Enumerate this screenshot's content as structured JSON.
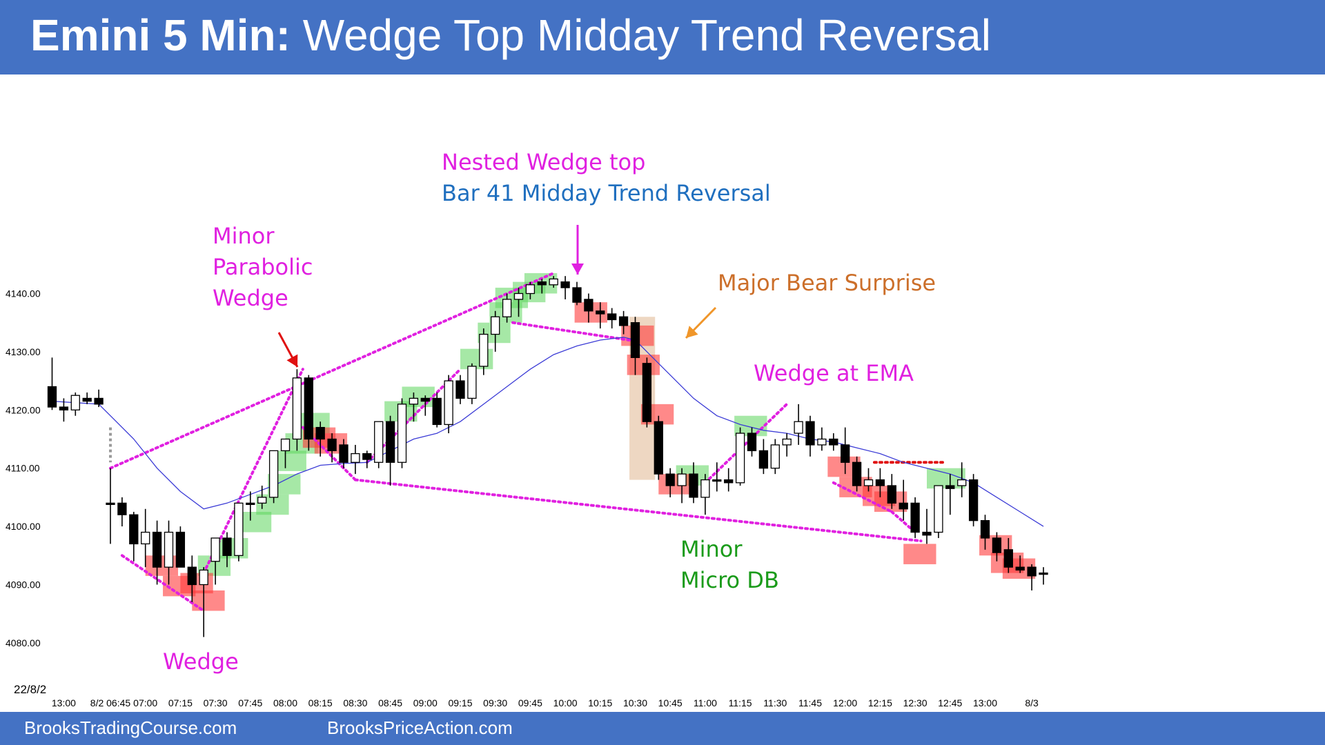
{
  "header": {
    "title_bold": "Emini 5 Min:",
    "title_rest": "Wedge Top Midday Trend Reversal"
  },
  "footer": {
    "link1": "BrooksTradingCourse.com",
    "link2": "BrooksPriceAction.com"
  },
  "date_label": "22/8/2",
  "colors": {
    "header_bg": "#4472c4",
    "bull_highlight": "#5cd65c",
    "bear_highlight": "#ff3b3b",
    "trendline_magenta": "#e020e0",
    "ema_line": "#3b3bd6",
    "arrow_red": "#e01010",
    "arrow_orange": "#f0962a",
    "surprise_box": "#e8c9ad"
  },
  "annotations": {
    "nested_wedge": "Nested Wedge top",
    "bar41": "Bar 41 Midday Trend Reversal",
    "minor_parabolic": [
      "Minor",
      "Parabolic",
      "Wedge"
    ],
    "major_bear": "Major Bear Surprise",
    "wedge_ema": "Wedge at EMA",
    "minor_micro": [
      "Minor",
      "Micro DB"
    ],
    "wedge": "Wedge"
  },
  "chart_data": {
    "type": "candlestick",
    "ylim": [
      4076,
      4148
    ],
    "y_ticks": [
      "4140.00",
      "4130.00",
      "4120.00",
      "4110.00",
      "4100.00",
      "4090.00",
      "4080.00"
    ],
    "y_tick_values": [
      4140,
      4130,
      4120,
      4110,
      4100,
      4090,
      4080
    ],
    "x_ticks": [
      {
        "label": "13:00",
        "bar": -4
      },
      {
        "label": "8/2 06:45",
        "bar": 0
      },
      {
        "label": "07:00",
        "bar": 3
      },
      {
        "label": "07:15",
        "bar": 6
      },
      {
        "label": "07:30",
        "bar": 9
      },
      {
        "label": "07:45",
        "bar": 12
      },
      {
        "label": "08:00",
        "bar": 15
      },
      {
        "label": "08:15",
        "bar": 18
      },
      {
        "label": "08:30",
        "bar": 21
      },
      {
        "label": "08:45",
        "bar": 24
      },
      {
        "label": "09:00",
        "bar": 27
      },
      {
        "label": "09:15",
        "bar": 30
      },
      {
        "label": "09:30",
        "bar": 33
      },
      {
        "label": "09:45",
        "bar": 36
      },
      {
        "label": "10:00",
        "bar": 39
      },
      {
        "label": "10:15",
        "bar": 42
      },
      {
        "label": "10:30",
        "bar": 45
      },
      {
        "label": "10:45",
        "bar": 48
      },
      {
        "label": "11:00",
        "bar": 51
      },
      {
        "label": "11:15",
        "bar": 54
      },
      {
        "label": "11:30",
        "bar": 57
      },
      {
        "label": "11:45",
        "bar": 60
      },
      {
        "label": "12:00",
        "bar": 63
      },
      {
        "label": "12:15",
        "bar": 66
      },
      {
        "label": "12:30",
        "bar": 69
      },
      {
        "label": "12:45",
        "bar": 72
      },
      {
        "label": "13:00",
        "bar": 75
      },
      {
        "label": "8/3",
        "bar": 79
      }
    ],
    "prior_day_bars": [
      {
        "bar": -5,
        "o": 4124,
        "h": 4129,
        "l": 4120,
        "c": 4120.5
      },
      {
        "bar": -4,
        "o": 4120.5,
        "h": 4122,
        "l": 4118,
        "c": 4120
      },
      {
        "bar": -3,
        "o": 4120,
        "h": 4123,
        "l": 4119,
        "c": 4122.5
      },
      {
        "bar": -2,
        "o": 4122,
        "h": 4123,
        "l": 4121,
        "c": 4121.5
      },
      {
        "bar": -1,
        "o": 4122,
        "h": 4123.5,
        "l": 4120.5,
        "c": 4121
      }
    ],
    "bars": [
      {
        "bar": 0,
        "o": 4104,
        "h": 4110,
        "l": 4097,
        "c": 4104
      },
      {
        "bar": 1,
        "o": 4104,
        "h": 4105,
        "l": 4100,
        "c": 4102
      },
      {
        "bar": 2,
        "o": 4102,
        "h": 4102.5,
        "l": 4094,
        "c": 4097
      },
      {
        "bar": 3,
        "o": 4097,
        "h": 4103,
        "l": 4093,
        "c": 4099
      },
      {
        "bar": 4,
        "o": 4099,
        "h": 4101,
        "l": 4090,
        "c": 4093
      },
      {
        "bar": 5,
        "o": 4093,
        "h": 4101,
        "l": 4090,
        "c": 4099
      },
      {
        "bar": 6,
        "o": 4099,
        "h": 4100,
        "l": 4093,
        "c": 4093
      },
      {
        "bar": 7,
        "o": 4093,
        "h": 4095,
        "l": 4087,
        "c": 4090
      },
      {
        "bar": 8,
        "o": 4090,
        "h": 4093,
        "l": 4081,
        "c": 4092.5
      },
      {
        "bar": 9,
        "o": 4094,
        "h": 4098,
        "l": 4090,
        "c": 4098
      },
      {
        "bar": 10,
        "o": 4098,
        "h": 4099,
        "l": 4093,
        "c": 4095
      },
      {
        "bar": 11,
        "o": 4095,
        "h": 4104,
        "l": 4094,
        "c": 4104
      },
      {
        "bar": 12,
        "o": 4104,
        "h": 4106,
        "l": 4101,
        "c": 4104
      },
      {
        "bar": 13,
        "o": 4104,
        "h": 4107,
        "l": 4103,
        "c": 4105
      },
      {
        "bar": 14,
        "o": 4105,
        "h": 4113,
        "l": 4104,
        "c": 4113
      },
      {
        "bar": 15,
        "o": 4113,
        "h": 4115,
        "l": 4110,
        "c": 4115
      },
      {
        "bar": 16,
        "o": 4115,
        "h": 4127,
        "l": 4113,
        "c": 4125.5
      },
      {
        "bar": 17,
        "o": 4125.5,
        "h": 4126,
        "l": 4113,
        "c": 4115
      },
      {
        "bar": 18,
        "o": 4117,
        "h": 4118,
        "l": 4112,
        "c": 4115
      },
      {
        "bar": 19,
        "o": 4115,
        "h": 4116,
        "l": 4111,
        "c": 4113
      },
      {
        "bar": 20,
        "o": 4114,
        "h": 4115,
        "l": 4110,
        "c": 4111
      },
      {
        "bar": 21,
        "o": 4111,
        "h": 4114,
        "l": 4109,
        "c": 4112.5
      },
      {
        "bar": 22,
        "o": 4112.5,
        "h": 4113,
        "l": 4110,
        "c": 4111.5
      },
      {
        "bar": 23,
        "o": 4111,
        "h": 4118,
        "l": 4110,
        "c": 4118
      },
      {
        "bar": 24,
        "o": 4118,
        "h": 4119,
        "l": 4107,
        "c": 4111
      },
      {
        "bar": 25,
        "o": 4111,
        "h": 4122,
        "l": 4110,
        "c": 4121
      },
      {
        "bar": 26,
        "o": 4121,
        "h": 4123,
        "l": 4118,
        "c": 4122
      },
      {
        "bar": 27,
        "o": 4122,
        "h": 4122.5,
        "l": 4119,
        "c": 4121.5
      },
      {
        "bar": 28,
        "o": 4122,
        "h": 4123,
        "l": 4117,
        "c": 4117.5
      },
      {
        "bar": 29,
        "o": 4117.5,
        "h": 4126,
        "l": 4116,
        "c": 4125
      },
      {
        "bar": 30,
        "o": 4125,
        "h": 4126,
        "l": 4121,
        "c": 4122
      },
      {
        "bar": 31,
        "o": 4122,
        "h": 4128,
        "l": 4121,
        "c": 4127.5
      },
      {
        "bar": 32,
        "o": 4127.5,
        "h": 4134,
        "l": 4126,
        "c": 4133
      },
      {
        "bar": 33,
        "o": 4133,
        "h": 4137,
        "l": 4130,
        "c": 4136
      },
      {
        "bar": 34,
        "o": 4136,
        "h": 4140,
        "l": 4135,
        "c": 4139
      },
      {
        "bar": 35,
        "o": 4139,
        "h": 4141,
        "l": 4136,
        "c": 4140
      },
      {
        "bar": 36,
        "o": 4140,
        "h": 4142,
        "l": 4139,
        "c": 4141.5
      },
      {
        "bar": 37,
        "o": 4141.5,
        "h": 4142.5,
        "l": 4140,
        "c": 4142
      },
      {
        "bar": 38,
        "o": 4141.5,
        "h": 4143,
        "l": 4141,
        "c": 4142.5
      },
      {
        "bar": 39,
        "o": 4142,
        "h": 4143,
        "l": 4139,
        "c": 4141
      },
      {
        "bar": 40,
        "o": 4141,
        "h": 4142,
        "l": 4138,
        "c": 4138.5
      },
      {
        "bar": 41,
        "o": 4139,
        "h": 4140,
        "l": 4135,
        "c": 4137
      },
      {
        "bar": 42,
        "o": 4137,
        "h": 4138.5,
        "l": 4134,
        "c": 4136.5
      },
      {
        "bar": 43,
        "o": 4136.5,
        "h": 4137.5,
        "l": 4134,
        "c": 4135.5
      },
      {
        "bar": 44,
        "o": 4136,
        "h": 4137,
        "l": 4133,
        "c": 4134.5
      },
      {
        "bar": 45,
        "o": 4135,
        "h": 4136,
        "l": 4126,
        "c": 4129
      },
      {
        "bar": 46,
        "o": 4128,
        "h": 4129,
        "l": 4117,
        "c": 4118
      },
      {
        "bar": 47,
        "o": 4118,
        "h": 4119,
        "l": 4108,
        "c": 4109
      },
      {
        "bar": 48,
        "o": 4109,
        "h": 4110,
        "l": 4105,
        "c": 4107
      },
      {
        "bar": 49,
        "o": 4107,
        "h": 4110,
        "l": 4104,
        "c": 4109
      },
      {
        "bar": 50,
        "o": 4109,
        "h": 4111,
        "l": 4104,
        "c": 4105
      },
      {
        "bar": 51,
        "o": 4105,
        "h": 4109,
        "l": 4102,
        "c": 4108
      },
      {
        "bar": 52,
        "o": 4108,
        "h": 4111,
        "l": 4106,
        "c": 4108
      },
      {
        "bar": 53,
        "o": 4108,
        "h": 4110,
        "l": 4106,
        "c": 4107.5
      },
      {
        "bar": 54,
        "o": 4107.5,
        "h": 4117,
        "l": 4107,
        "c": 4116
      },
      {
        "bar": 55,
        "o": 4116,
        "h": 4117,
        "l": 4112,
        "c": 4113
      },
      {
        "bar": 56,
        "o": 4113,
        "h": 4115,
        "l": 4109,
        "c": 4110
      },
      {
        "bar": 57,
        "o": 4110,
        "h": 4115,
        "l": 4109,
        "c": 4114
      },
      {
        "bar": 58,
        "o": 4114,
        "h": 4116,
        "l": 4112,
        "c": 4115
      },
      {
        "bar": 59,
        "o": 4116,
        "h": 4121,
        "l": 4114,
        "c": 4118
      },
      {
        "bar": 60,
        "o": 4118,
        "h": 4119,
        "l": 4112,
        "c": 4114
      },
      {
        "bar": 61,
        "o": 4114,
        "h": 4117,
        "l": 4113,
        "c": 4115
      },
      {
        "bar": 62,
        "o": 4115,
        "h": 4116,
        "l": 4113,
        "c": 4114
      },
      {
        "bar": 63,
        "o": 4114,
        "h": 4117,
        "l": 4109,
        "c": 4111
      },
      {
        "bar": 64,
        "o": 4111,
        "h": 4112,
        "l": 4106,
        "c": 4107
      },
      {
        "bar": 65,
        "o": 4107,
        "h": 4110,
        "l": 4106,
        "c": 4108
      },
      {
        "bar": 66,
        "o": 4108,
        "h": 4110,
        "l": 4105,
        "c": 4107
      },
      {
        "bar": 67,
        "o": 4107,
        "h": 4109,
        "l": 4103,
        "c": 4104
      },
      {
        "bar": 68,
        "o": 4104,
        "h": 4108,
        "l": 4101,
        "c": 4103
      },
      {
        "bar": 69,
        "o": 4104,
        "h": 4105,
        "l": 4098,
        "c": 4099
      },
      {
        "bar": 70,
        "o": 4099,
        "h": 4103,
        "l": 4097,
        "c": 4098.5
      },
      {
        "bar": 71,
        "o": 4099,
        "h": 4107,
        "l": 4098,
        "c": 4107
      },
      {
        "bar": 72,
        "o": 4107,
        "h": 4109,
        "l": 4102,
        "c": 4106.5
      },
      {
        "bar": 73,
        "o": 4107,
        "h": 4111,
        "l": 4105,
        "c": 4108
      },
      {
        "bar": 74,
        "o": 4108,
        "h": 4109,
        "l": 4100,
        "c": 4101
      },
      {
        "bar": 75,
        "o": 4101,
        "h": 4102,
        "l": 4096,
        "c": 4098
      },
      {
        "bar": 76,
        "o": 4098,
        "h": 4099,
        "l": 4094,
        "c": 4095.5
      },
      {
        "bar": 77,
        "o": 4096,
        "h": 4098,
        "l": 4092,
        "c": 4093
      },
      {
        "bar": 78,
        "o": 4093,
        "h": 4095,
        "l": 4092,
        "c": 4092.5
      },
      {
        "bar": 79,
        "o": 4093,
        "h": 4093.5,
        "l": 4089,
        "c": 4091.5
      },
      {
        "bar": 80,
        "o": 4092,
        "h": 4093,
        "l": 4090,
        "c": 4092
      }
    ],
    "ema": [
      [
        -5,
        4121.5
      ],
      [
        -1,
        4121
      ],
      [
        0,
        4119
      ],
      [
        2,
        4115
      ],
      [
        4,
        4110
      ],
      [
        6,
        4106
      ],
      [
        8,
        4103
      ],
      [
        10,
        4104
      ],
      [
        12,
        4105.5
      ],
      [
        14,
        4107
      ],
      [
        16,
        4109
      ],
      [
        18,
        4110.5
      ],
      [
        20,
        4110.8
      ],
      [
        22,
        4111
      ],
      [
        24,
        4113
      ],
      [
        26,
        4115
      ],
      [
        28,
        4116
      ],
      [
        30,
        4118
      ],
      [
        32,
        4121
      ],
      [
        34,
        4124
      ],
      [
        36,
        4127
      ],
      [
        38,
        4129.5
      ],
      [
        40,
        4131
      ],
      [
        42,
        4132
      ],
      [
        44,
        4132.5
      ],
      [
        45,
        4132
      ],
      [
        46,
        4130
      ],
      [
        48,
        4126
      ],
      [
        50,
        4122
      ],
      [
        52,
        4119
      ],
      [
        54,
        4117.5
      ],
      [
        56,
        4116.5
      ],
      [
        58,
        4116
      ],
      [
        60,
        4115
      ],
      [
        62,
        4114.5
      ],
      [
        64,
        4113.5
      ],
      [
        66,
        4112.5
      ],
      [
        68,
        4111
      ],
      [
        70,
        4110
      ],
      [
        72,
        4109
      ],
      [
        74,
        4107.5
      ],
      [
        76,
        4105
      ],
      [
        78,
        4102.5
      ],
      [
        80,
        4100
      ]
    ],
    "bull_highlights": [
      {
        "b0": 7.5,
        "b1": 10.3,
        "p0": 4091.5,
        "p1": 4095
      },
      {
        "b0": 9,
        "b1": 11.8,
        "p0": 4094.5,
        "p1": 4098
      },
      {
        "b0": 11,
        "b1": 13.8,
        "p0": 4099,
        "p1": 4102.5
      },
      {
        "b0": 12.5,
        "b1": 15.3,
        "p0": 4102,
        "p1": 4105.5
      },
      {
        "b0": 13.5,
        "b1": 16.3,
        "p0": 4105.5,
        "p1": 4109
      },
      {
        "b0": 14,
        "b1": 16.8,
        "p0": 4109.5,
        "p1": 4113
      },
      {
        "b0": 15,
        "b1": 17.8,
        "p0": 4112.5,
        "p1": 4116
      },
      {
        "b0": 16,
        "b1": 18.8,
        "p0": 4116,
        "p1": 4119.5
      },
      {
        "b0": 23.5,
        "b1": 26.3,
        "p0": 4118,
        "p1": 4121.5
      },
      {
        "b0": 25,
        "b1": 27.8,
        "p0": 4120.5,
        "p1": 4124
      },
      {
        "b0": 30,
        "b1": 32.8,
        "p0": 4127,
        "p1": 4130.5
      },
      {
        "b0": 31.5,
        "b1": 34.3,
        "p0": 4131.5,
        "p1": 4135
      },
      {
        "b0": 32.5,
        "b1": 35.3,
        "p0": 4135,
        "p1": 4138.5
      },
      {
        "b0": 33,
        "b1": 35.8,
        "p0": 4137.5,
        "p1": 4141
      },
      {
        "b0": 34.5,
        "b1": 37.3,
        "p0": 4138.5,
        "p1": 4142
      },
      {
        "b0": 35.5,
        "b1": 38.3,
        "p0": 4140,
        "p1": 4143.5
      },
      {
        "b0": 48.5,
        "b1": 51.3,
        "p0": 4107,
        "p1": 4110.5
      },
      {
        "b0": 53.5,
        "b1": 56.3,
        "p0": 4115.5,
        "p1": 4119
      },
      {
        "b0": 70,
        "b1": 73.3,
        "p0": 4106.5,
        "p1": 4110
      }
    ],
    "bear_highlights": [
      {
        "b0": 3,
        "b1": 5.8,
        "p0": 4091.5,
        "p1": 4095
      },
      {
        "b0": 4.5,
        "b1": 7.3,
        "p0": 4088,
        "p1": 4091.5
      },
      {
        "b0": 6,
        "b1": 8.8,
        "p0": 4088.5,
        "p1": 4092
      },
      {
        "b0": 7,
        "b1": 9.8,
        "p0": 4085.5,
        "p1": 4089
      },
      {
        "b0": 17.5,
        "b1": 20.3,
        "p0": 4112.5,
        "p1": 4116
      },
      {
        "b0": 16.5,
        "b1": 19.3,
        "p0": 4113.5,
        "p1": 4117
      },
      {
        "b0": 39.8,
        "b1": 42.6,
        "p0": 4135,
        "p1": 4138.5
      },
      {
        "b0": 43.8,
        "b1": 46.6,
        "p0": 4131,
        "p1": 4134.5
      },
      {
        "b0": 44.3,
        "b1": 47.1,
        "p0": 4126,
        "p1": 4129.5
      },
      {
        "b0": 45.5,
        "b1": 48.3,
        "p0": 4117.5,
        "p1": 4121
      },
      {
        "b0": 47,
        "b1": 49.8,
        "p0": 4105.5,
        "p1": 4109
      },
      {
        "b0": 61.5,
        "b1": 64.3,
        "p0": 4108.5,
        "p1": 4112
      },
      {
        "b0": 62.5,
        "b1": 65.3,
        "p0": 4105,
        "p1": 4108.5
      },
      {
        "b0": 64.5,
        "b1": 67.3,
        "p0": 4103.5,
        "p1": 4107
      },
      {
        "b0": 65.5,
        "b1": 68.3,
        "p0": 4102.5,
        "p1": 4106
      },
      {
        "b0": 68,
        "b1": 70.8,
        "p0": 4093.5,
        "p1": 4097
      },
      {
        "b0": 74.5,
        "b1": 77.3,
        "p0": 4095,
        "p1": 4098.5
      },
      {
        "b0": 75.5,
        "b1": 78.3,
        "p0": 4092,
        "p1": 4095.5
      },
      {
        "b0": 76.5,
        "b1": 79.3,
        "p0": 4091,
        "p1": 4094.5
      }
    ],
    "trendlines_magenta": [
      [
        0,
        4110,
        38,
        4143.5
      ],
      [
        16.5,
        4117,
        21,
        4108
      ],
      [
        21,
        4108,
        69.5,
        4097.5
      ],
      [
        1,
        4095,
        8,
        4085.5
      ],
      [
        8,
        4092,
        16.5,
        4127
      ],
      [
        22,
        4111,
        30,
        4127
      ],
      [
        34.5,
        4135,
        44.5,
        4132
      ],
      [
        51,
        4107.5,
        58,
        4121
      ],
      [
        62,
        4107.5,
        67,
        4102.5
      ],
      [
        67,
        4102.5,
        69,
        4099
      ]
    ],
    "resistance_line": [
      65.5,
      4111,
      71.5,
      4111
    ],
    "gap_line": [
      0,
      4117,
      0,
      4111
    ],
    "surprise_box": {
      "b0": 44.5,
      "b1": 46.7,
      "p0": 4108,
      "p1": 4136
    }
  }
}
